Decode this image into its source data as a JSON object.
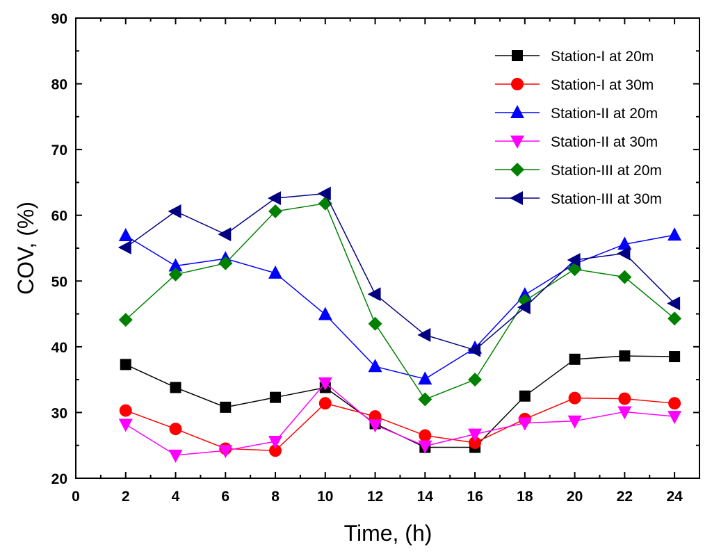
{
  "chart_data": {
    "type": "line",
    "title": "",
    "xlabel": "Time, (h)",
    "ylabel": "COV, (%)",
    "xlim": [
      0,
      25
    ],
    "ylim": [
      20,
      90
    ],
    "xticks": [
      0,
      2,
      4,
      6,
      8,
      10,
      12,
      14,
      16,
      18,
      20,
      22,
      24
    ],
    "yticks": [
      20,
      30,
      40,
      50,
      60,
      70,
      80,
      90
    ],
    "grid": false,
    "legend_position": "top-right",
    "x": [
      2,
      4,
      6,
      8,
      10,
      12,
      14,
      16,
      18,
      20,
      22,
      24
    ],
    "series": [
      {
        "name": "Station-I at 20m",
        "color": "#000000",
        "marker": "square",
        "values": [
          37.3,
          33.8,
          30.8,
          32.3,
          33.8,
          28.3,
          24.7,
          24.7,
          32.5,
          38.1,
          38.6,
          38.5
        ]
      },
      {
        "name": "Station-I at 30m",
        "color": "#ff0000",
        "marker": "circle",
        "values": [
          30.3,
          27.5,
          24.5,
          24.2,
          31.4,
          29.4,
          26.5,
          25.4,
          29.0,
          32.2,
          32.1,
          31.4
        ]
      },
      {
        "name": "Station-II at 20m",
        "color": "#0000ff",
        "marker": "triangle-up",
        "values": [
          56.9,
          52.3,
          53.4,
          51.2,
          44.9,
          37.0,
          35.1,
          39.8,
          47.9,
          52.6,
          55.6,
          57.0
        ]
      },
      {
        "name": "Station-II at 30m",
        "color": "#ff00ff",
        "marker": "triangle-down",
        "values": [
          28.2,
          23.5,
          24.2,
          25.6,
          34.5,
          28.1,
          24.9,
          26.7,
          28.4,
          28.7,
          30.1,
          29.4
        ]
      },
      {
        "name": "Station-III at 20m",
        "color": "#008000",
        "marker": "diamond",
        "values": [
          44.1,
          51.0,
          52.7,
          60.6,
          61.8,
          43.5,
          32.0,
          35.0,
          47.0,
          51.8,
          50.6,
          44.3
        ]
      },
      {
        "name": "Station-III at 30m",
        "color": "#000080",
        "marker": "triangle-left",
        "values": [
          55.1,
          60.6,
          57.1,
          62.6,
          63.3,
          48.0,
          41.8,
          39.5,
          46.0,
          53.2,
          54.2,
          46.6
        ]
      }
    ]
  }
}
